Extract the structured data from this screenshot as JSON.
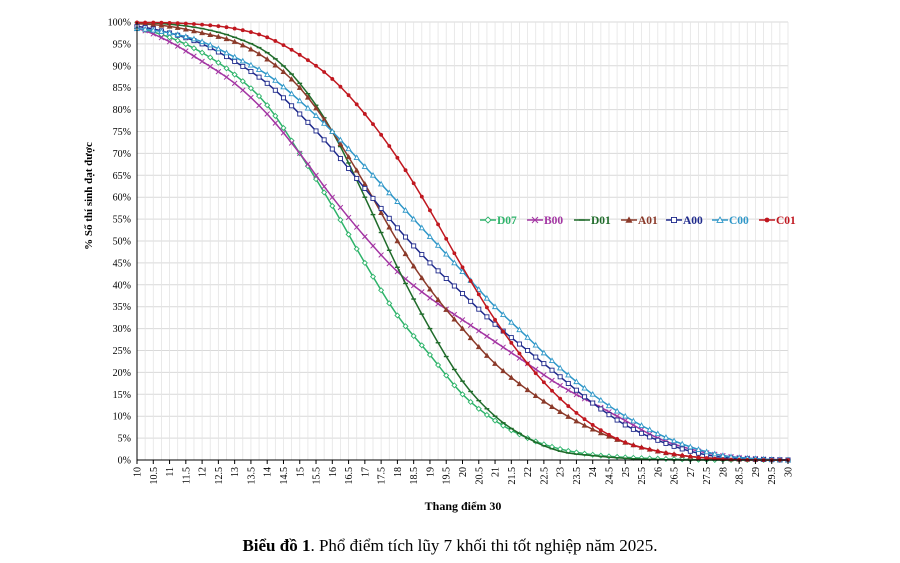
{
  "caption": {
    "bold": "Biểu đồ 1",
    "text": ". Phổ điểm tích lũy 7 khối thi tốt nghiệp năm 2025."
  },
  "chart_data": {
    "type": "line",
    "xlabel": "Thang điểm 30",
    "ylabel": "% Số thí sinh đạt được",
    "xlim": [
      10,
      30
    ],
    "ylim": [
      0,
      100
    ],
    "y_ticks": [
      "0%",
      "5%",
      "10%",
      "15%",
      "20%",
      "25%",
      "30%",
      "35%",
      "40%",
      "45%",
      "50%",
      "55%",
      "60%",
      "65%",
      "70%",
      "75%",
      "80%",
      "85%",
      "90%",
      "95%",
      "100%"
    ],
    "x_ticks": [
      "10",
      "10.5",
      "11",
      "11.5",
      "12",
      "12.5",
      "13",
      "13.5",
      "14",
      "14.5",
      "15",
      "15.5",
      "16",
      "16.5",
      "17",
      "17.5",
      "18",
      "18.5",
      "19",
      "19.5",
      "20",
      "20.5",
      "21",
      "21.5",
      "22",
      "22.5",
      "23",
      "23.5",
      "24",
      "24.5",
      "25",
      "25.5",
      "26",
      "26.5",
      "27",
      "27.5",
      "28",
      "28.5",
      "29",
      "29.5",
      "30"
    ],
    "grid": true,
    "legend_position": "center-right",
    "x": [
      10,
      11,
      12,
      13,
      14,
      15,
      16,
      17,
      18,
      19,
      20,
      21,
      22,
      23,
      24,
      25,
      26,
      27,
      28,
      29,
      30
    ],
    "series": [
      {
        "name": "D07",
        "color": "#2eb36a",
        "marker": "diamond-open",
        "values": [
          98.5,
          96.5,
          93,
          88,
          81,
          70,
          58,
          45,
          33,
          24,
          15,
          9,
          5,
          2.5,
          1.2,
          0.6,
          0.3,
          0.1,
          0,
          0,
          0
        ]
      },
      {
        "name": "B00",
        "color": "#a335a3",
        "marker": "x",
        "values": [
          98.5,
          95.5,
          91,
          86,
          79,
          70,
          60,
          51,
          43,
          37,
          32,
          27,
          22,
          17,
          13,
          9,
          5,
          2.5,
          1,
          0.3,
          0
        ]
      },
      {
        "name": "D01",
        "color": "#1f6b2a",
        "marker": "dash",
        "values": [
          99.9,
          99.5,
          98.5,
          96.5,
          93,
          86,
          75,
          60,
          44,
          30,
          18,
          10,
          5,
          2,
          1,
          0.4,
          0.1,
          0,
          0,
          0,
          0
        ]
      },
      {
        "name": "A01",
        "color": "#8b3a2a",
        "marker": "triangle",
        "values": [
          99.6,
          99,
          97.5,
          95.5,
          91.5,
          85,
          75,
          63,
          50,
          39,
          30,
          22,
          16,
          11,
          7,
          4,
          2,
          0.8,
          0.3,
          0.1,
          0
        ]
      },
      {
        "name": "A00",
        "color": "#1f2a8c",
        "marker": "square-open",
        "values": [
          99,
          97.5,
          95,
          91,
          86,
          79,
          71,
          62,
          53,
          45,
          38,
          31,
          25,
          19,
          13,
          8,
          4.5,
          2,
          0.6,
          0.2,
          0
        ]
      },
      {
        "name": "C00",
        "color": "#2f97c8",
        "marker": "triangle-open",
        "values": [
          98.5,
          97.5,
          95.5,
          92,
          88,
          82,
          75,
          67,
          59,
          51,
          43,
          35,
          28,
          21,
          15,
          10,
          6,
          3,
          1,
          0.3,
          0
        ]
      },
      {
        "name": "C01",
        "color": "#c0171f",
        "marker": "dot",
        "values": [
          99.9,
          99.8,
          99.4,
          98.5,
          96.5,
          92.5,
          87,
          79,
          69,
          57,
          44,
          32,
          22,
          14,
          8,
          4,
          2,
          0.8,
          0.2,
          0,
          0
        ]
      }
    ]
  }
}
